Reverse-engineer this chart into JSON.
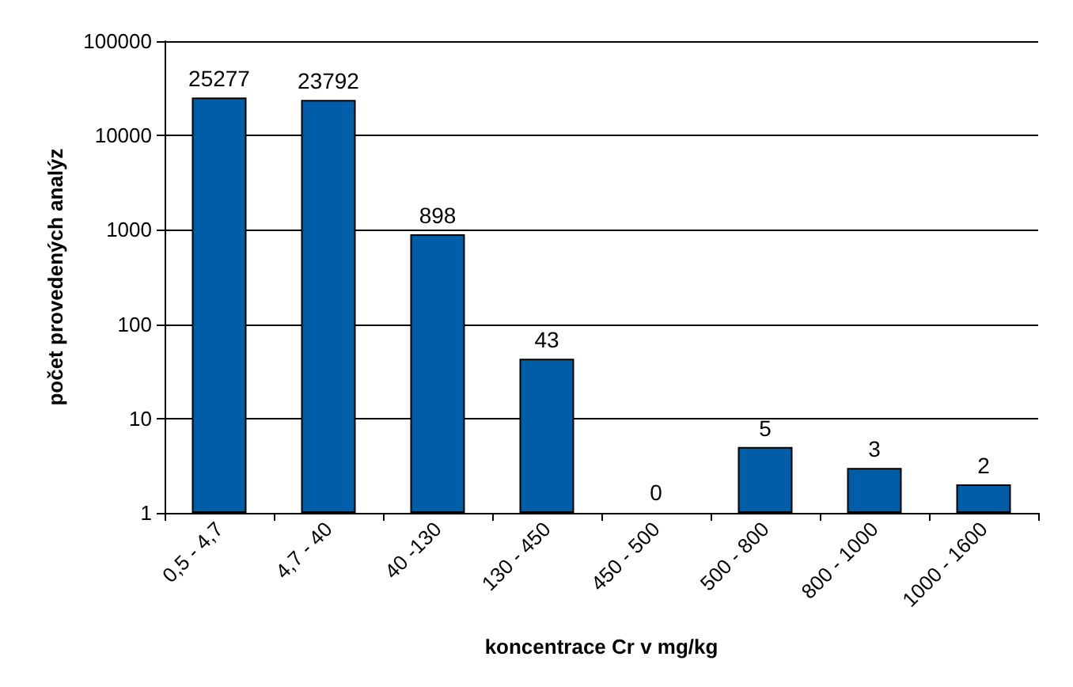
{
  "chart_data": {
    "type": "bar",
    "xlabel": "koncentrace Cr v mg/kg",
    "ylabel": "počet provedených analýz",
    "categories": [
      "0,5 - 4,7",
      "4,7 - 40",
      "40 -130",
      "130 - 450",
      "450 - 500",
      "500 - 800",
      "800 - 1000",
      "1000 - 1600"
    ],
    "values": [
      25277,
      23792,
      898,
      43,
      null,
      5,
      3,
      2
    ],
    "value_labels": [
      "25277",
      "23792",
      "898",
      "43",
      "0",
      "5",
      "3",
      "2"
    ],
    "color": "#005ea8",
    "log": true,
    "ylim": [
      1,
      100000
    ],
    "yticks": [
      1,
      10,
      100,
      1000,
      10000,
      100000
    ],
    "grid": "y"
  }
}
